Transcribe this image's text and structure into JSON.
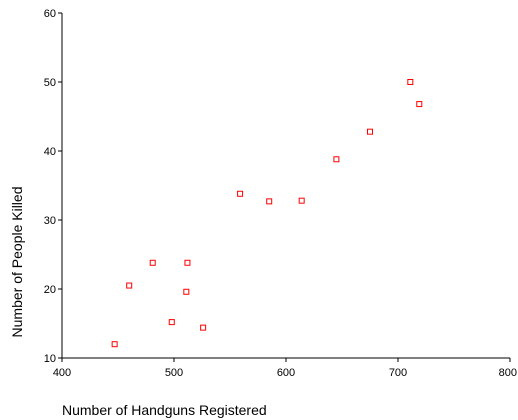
{
  "chart_data": {
    "type": "scatter",
    "title": "",
    "xlabel": "Number of Handguns Registered",
    "ylabel": "Number of People Killed",
    "xlim": [
      400,
      800
    ],
    "ylim": [
      10,
      60
    ],
    "xticks": [
      400,
      500,
      600,
      700,
      800
    ],
    "yticks": [
      10,
      20,
      30,
      40,
      50,
      60
    ],
    "xtick_labels": [
      "400",
      "500",
      "600",
      "700",
      "800"
    ],
    "ytick_labels": [
      "10",
      "20",
      "30",
      "40",
      "50",
      "60"
    ],
    "grid": false,
    "legend": "none",
    "marker": "hollow-square",
    "marker_color": "#ff0000",
    "points": [
      {
        "x": 447,
        "y": 12
      },
      {
        "x": 460,
        "y": 20.5
      },
      {
        "x": 481,
        "y": 23.8
      },
      {
        "x": 498,
        "y": 15.2
      },
      {
        "x": 511,
        "y": 19.6
      },
      {
        "x": 512,
        "y": 23.8
      },
      {
        "x": 526,
        "y": 14.4
      },
      {
        "x": 559,
        "y": 33.8
      },
      {
        "x": 585,
        "y": 32.7
      },
      {
        "x": 614,
        "y": 32.8
      },
      {
        "x": 645,
        "y": 38.8
      },
      {
        "x": 675,
        "y": 42.8
      },
      {
        "x": 711,
        "y": 50
      },
      {
        "x": 719,
        "y": 46.8
      }
    ]
  }
}
